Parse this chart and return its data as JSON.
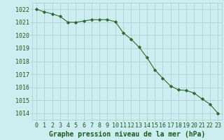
{
  "hours": [
    0,
    1,
    2,
    3,
    4,
    5,
    6,
    7,
    8,
    9,
    10,
    11,
    12,
    13,
    14,
    15,
    16,
    17,
    18,
    19,
    20,
    21,
    22,
    23
  ],
  "pressure": [
    1022.0,
    1021.8,
    1021.65,
    1021.45,
    1021.0,
    1021.0,
    1021.1,
    1021.2,
    1021.2,
    1021.2,
    1021.05,
    1020.2,
    1019.7,
    1019.1,
    1018.3,
    1017.35,
    1016.7,
    1016.1,
    1015.8,
    1015.75,
    1015.55,
    1015.1,
    1014.7,
    1014.0
  ],
  "line_color": "#2d6a2d",
  "marker_color": "#2d6a2d",
  "bg_color": "#cceef0",
  "grid_color": "#aacccc",
  "text_color": "#1a5c1a",
  "ylim": [
    1013.5,
    1022.5
  ],
  "yticks": [
    1014,
    1015,
    1016,
    1017,
    1018,
    1019,
    1020,
    1021,
    1022
  ],
  "xlabel": "Graphe pression niveau de la mer (hPa)",
  "tick_fontsize": 6.0,
  "xlabel_fontsize": 7.0
}
